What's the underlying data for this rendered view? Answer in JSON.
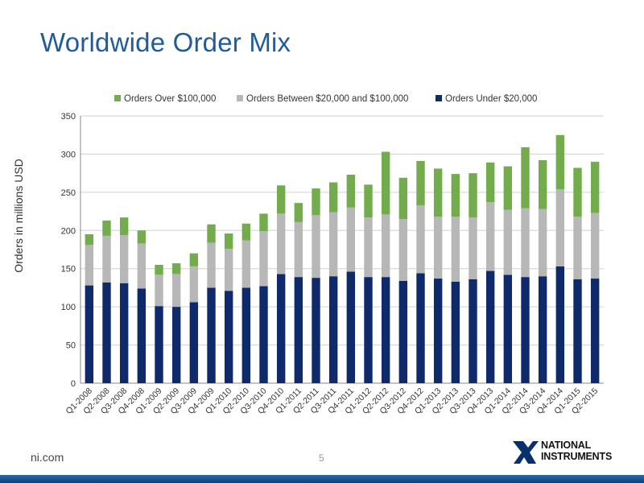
{
  "slide": {
    "title": "Worldwide Order Mix",
    "footer_url": "ni.com",
    "page_number": "5",
    "logo_line1": "NATIONAL",
    "logo_line2": "INSTRUMENTS"
  },
  "colors": {
    "under": "#0f2a6b",
    "between": "#b7b7b7",
    "over": "#72ac4d",
    "title": "#1f5c99"
  },
  "chart_data": {
    "type": "bar",
    "stacked": true,
    "title": "",
    "ylabel": "Orders in millions USD",
    "xlabel": "",
    "ylim": [
      0,
      350
    ],
    "yticks": [
      0,
      50,
      100,
      150,
      200,
      250,
      300,
      350
    ],
    "grid": true,
    "legend_position": "top",
    "categories": [
      "Q1-2008",
      "Q2-2008",
      "Q3-2008",
      "Q4-2008",
      "Q1-2009",
      "Q2-2009",
      "Q3-2009",
      "Q4-2009",
      "Q1-2010",
      "Q2-2010",
      "Q3-2010",
      "Q4-2010",
      "Q1-2011",
      "Q2-2011",
      "Q3-2011",
      "Q4-2011",
      "Q1-2012",
      "Q2-2012",
      "Q3-2012",
      "Q4-2012",
      "Q1-2013",
      "Q2-2013",
      "Q3-2013",
      "Q4-2013",
      "Q1-2014",
      "Q2-2014",
      "Q3-2014",
      "Q4-2014",
      "Q1-2015",
      "Q2-2015"
    ],
    "series": [
      {
        "name": "Orders Under $20,000",
        "color": "#0f2a6b",
        "values": [
          128,
          132,
          131,
          124,
          101,
          100,
          106,
          125,
          121,
          125,
          127,
          143,
          139,
          138,
          140,
          146,
          139,
          139,
          134,
          144,
          137,
          133,
          136,
          147,
          142,
          139,
          140,
          153,
          136,
          137
        ]
      },
      {
        "name": "Orders Between $20,000 and $100,000",
        "color": "#b7b7b7",
        "values": [
          53,
          61,
          63,
          59,
          41,
          43,
          47,
          59,
          55,
          62,
          72,
          79,
          72,
          82,
          84,
          84,
          78,
          82,
          81,
          89,
          81,
          85,
          81,
          90,
          85,
          90,
          88,
          101,
          82,
          86
        ]
      },
      {
        "name": "Orders Over $100,000",
        "color": "#72ac4d",
        "values": [
          14,
          20,
          23,
          17,
          13,
          14,
          17,
          24,
          20,
          22,
          23,
          37,
          25,
          35,
          39,
          43,
          43,
          82,
          54,
          58,
          63,
          56,
          58,
          52,
          57,
          80,
          64,
          71,
          64,
          67
        ]
      }
    ],
    "legend_order": [
      "Orders Over $100,000",
      "Orders Between $20,000 and $100,000",
      "Orders Under $20,000"
    ]
  }
}
